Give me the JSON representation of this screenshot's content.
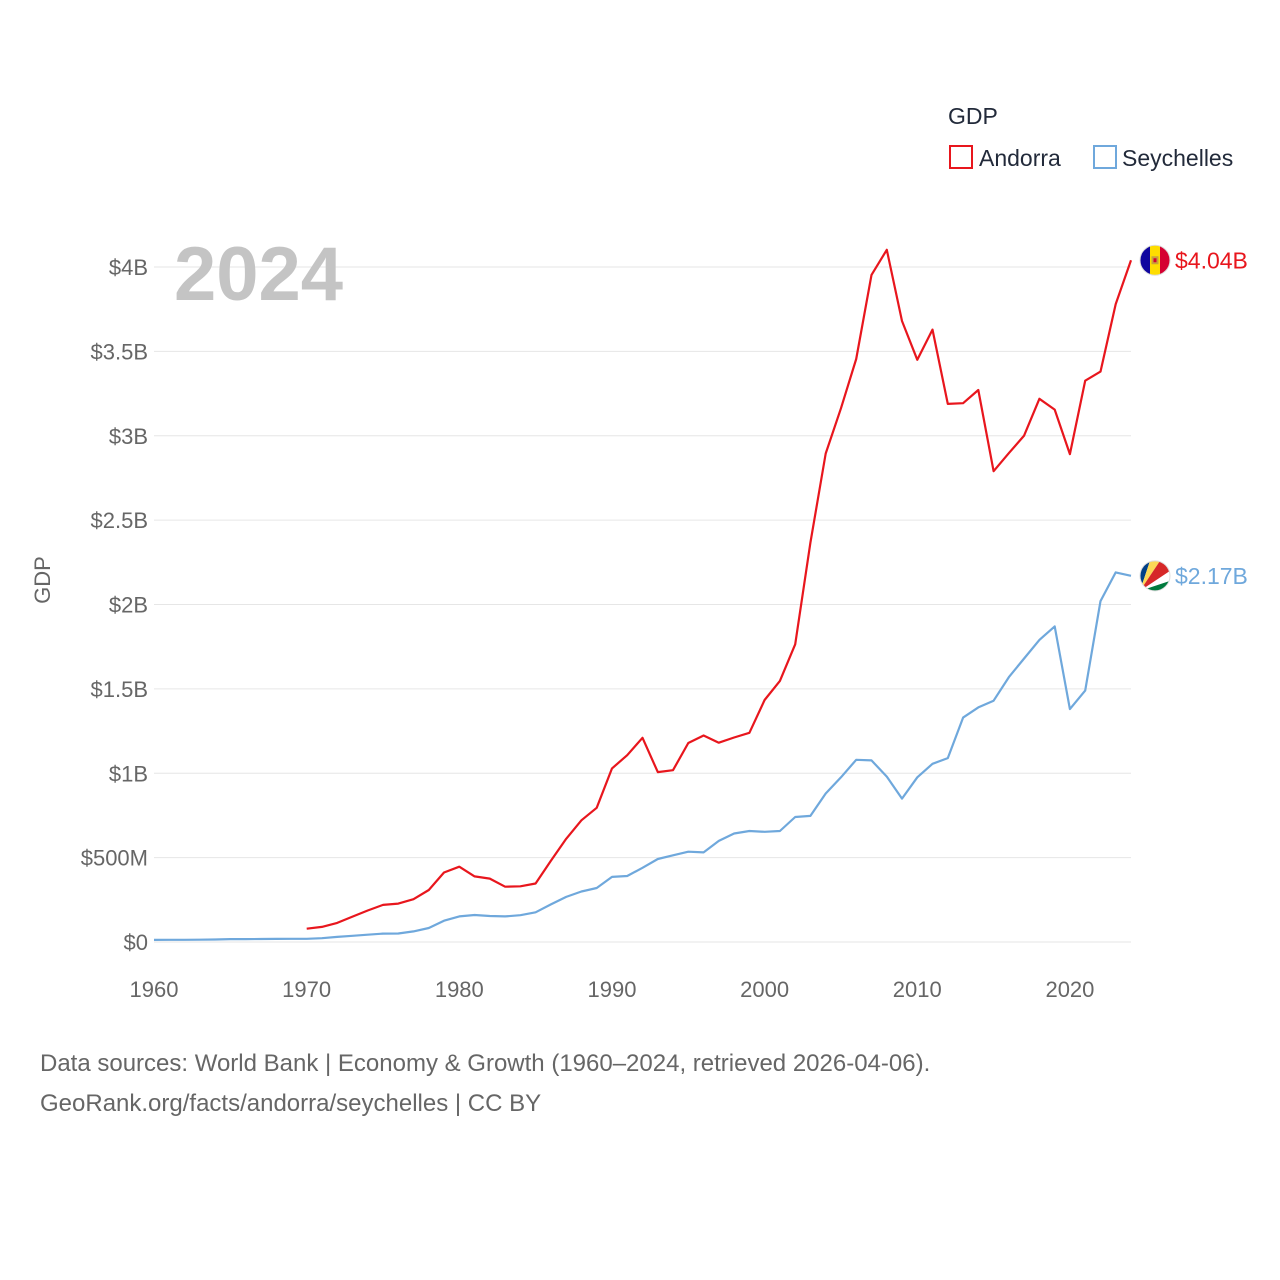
{
  "chart_data": {
    "type": "line",
    "title": "",
    "year_label": "2024",
    "ylabel": "GDP",
    "xlabel": "",
    "xlim": [
      1960,
      2024
    ],
    "ylim": [
      0,
      4000000000
    ],
    "x_ticks": [
      1960,
      1970,
      1980,
      1990,
      2000,
      2010,
      2020
    ],
    "x_tick_labels": [
      "1960",
      "1970",
      "1980",
      "1990",
      "2000",
      "2010",
      "2020"
    ],
    "y_ticks": [
      0,
      500000000,
      1000000000,
      1500000000,
      2000000000,
      2500000000,
      3000000000,
      3500000000,
      4000000000
    ],
    "y_tick_labels": [
      "$0",
      "$500M",
      "$1B",
      "$1.5B",
      "$2B",
      "$2.5B",
      "$3B",
      "$3.5B",
      "$4B"
    ],
    "legend_title": "GDP",
    "legend_position": "top-right",
    "grid": true,
    "series": [
      {
        "name": "Andorra",
        "color": "#e8161d",
        "end_label": "$4.04B",
        "flag": "andorra-flag",
        "x": [
          1970,
          1971,
          1972,
          1973,
          1974,
          1975,
          1976,
          1977,
          1978,
          1979,
          1980,
          1981,
          1982,
          1983,
          1984,
          1985,
          1986,
          1987,
          1988,
          1989,
          1990,
          1991,
          1992,
          1993,
          1994,
          1995,
          1996,
          1997,
          1998,
          1999,
          2000,
          2001,
          2002,
          2003,
          2004,
          2005,
          2006,
          2007,
          2008,
          2009,
          2010,
          2011,
          2012,
          2013,
          2014,
          2015,
          2016,
          2017,
          2018,
          2019,
          2020,
          2021,
          2022,
          2023,
          2024
        ],
        "y": [
          78600000,
          89400000,
          113400000,
          150800000,
          186600000,
          220100000,
          227300000,
          253900000,
          308300000,
          411600000,
          446400000,
          388900000,
          375900000,
          327900000,
          330100000,
          346700000,
          482000000,
          611300000,
          721400000,
          795400000,
          1029000000,
          1107000000,
          1210000000,
          1007000000,
          1018000000,
          1179000000,
          1224000000,
          1181000000,
          1212000000,
          1240000000,
          1434000000,
          1547000000,
          1764000000,
          2366000000,
          2895000000,
          3163000000,
          3455000000,
          3953000000,
          4102000000,
          3680000000,
          3450000000,
          3629000000,
          3189000000,
          3193000000,
          3271000000,
          2790000000,
          2897000000,
          3001000000,
          3219000000,
          3155000000,
          2891000000,
          3326000000,
          3380000000,
          3780000000,
          4040000000
        ]
      },
      {
        "name": "Seychelles",
        "color": "#6fa8dc",
        "end_label": "$2.17B",
        "flag": "seychelles-flag",
        "x": [
          1960,
          1961,
          1962,
          1963,
          1964,
          1965,
          1966,
          1967,
          1968,
          1969,
          1970,
          1971,
          1972,
          1973,
          1974,
          1975,
          1976,
          1977,
          1978,
          1979,
          1980,
          1981,
          1982,
          1983,
          1984,
          1985,
          1986,
          1987,
          1988,
          1989,
          1990,
          1991,
          1992,
          1993,
          1994,
          1995,
          1996,
          1997,
          1998,
          1999,
          2000,
          2001,
          2002,
          2003,
          2004,
          2005,
          2006,
          2007,
          2008,
          2009,
          2010,
          2011,
          2012,
          2013,
          2014,
          2015,
          2016,
          2017,
          2018,
          2019,
          2020,
          2021,
          2022,
          2023,
          2024
        ],
        "y": [
          12400000,
          12800000,
          13100000,
          13800000,
          15100000,
          16900000,
          17300000,
          17900000,
          18200000,
          18700000,
          18900000,
          22500000,
          30200000,
          36700000,
          43000000,
          49900000,
          50100000,
          63000000,
          83000000,
          126000000,
          152000000,
          160000000,
          154000000,
          152000000,
          159000000,
          176000000,
          223000000,
          267000000,
          299000000,
          320000000,
          386000000,
          391000000,
          440000000,
          492000000,
          514000000,
          535000000,
          531000000,
          599000000,
          643000000,
          658000000,
          653000000,
          658000000,
          741000000,
          747000000,
          880000000,
          976000000,
          1080000000,
          1076000000,
          980000000,
          850000000,
          976000000,
          1056000000,
          1090000000,
          1330000000,
          1390000000,
          1430000000,
          1570000000,
          1680000000,
          1790000000,
          1870000000,
          1380000000,
          1490000000,
          2020000000,
          2190000000,
          2170000000
        ]
      }
    ]
  },
  "footer": {
    "line1": "Data sources: World Bank | Economy & Growth (1960–2024, retrieved 2026-04-06).",
    "line2": "GeoRank.org/facts/andorra/seychelles | CC BY"
  }
}
